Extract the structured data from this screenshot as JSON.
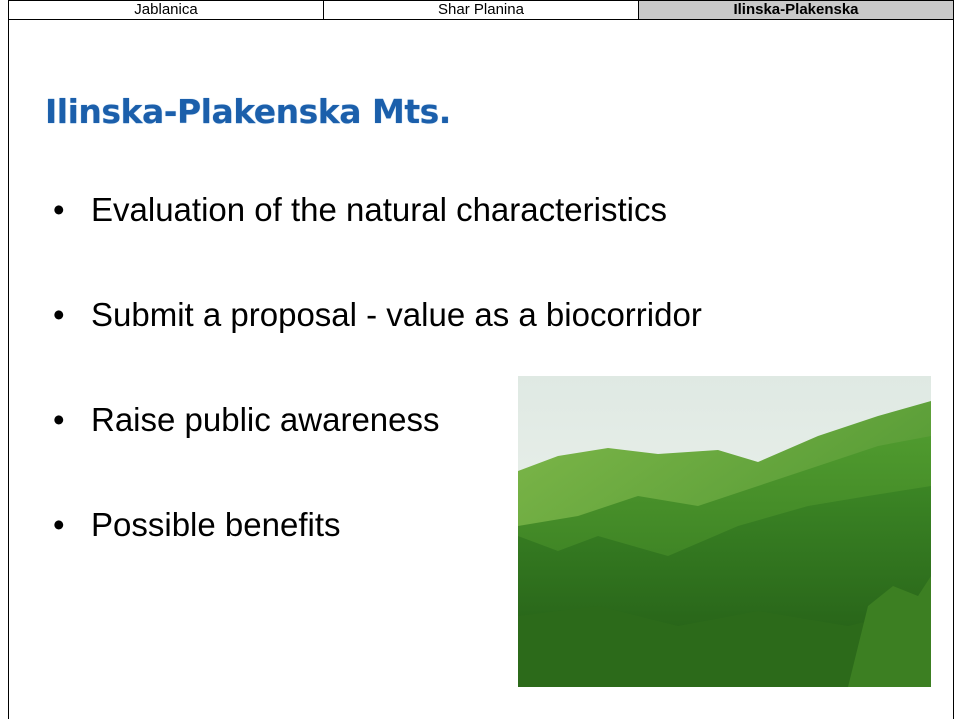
{
  "tabs": [
    "Jablanica",
    "Shar Planina",
    "Ilinska-Plakenska"
  ],
  "title": "Ilinska-Plakenska Mts.",
  "bullets": [
    "Evaluation of the natural characteristics",
    "Submit a proposal - value as a biocorridor",
    "Raise public awareness",
    "Possible benefits"
  ]
}
